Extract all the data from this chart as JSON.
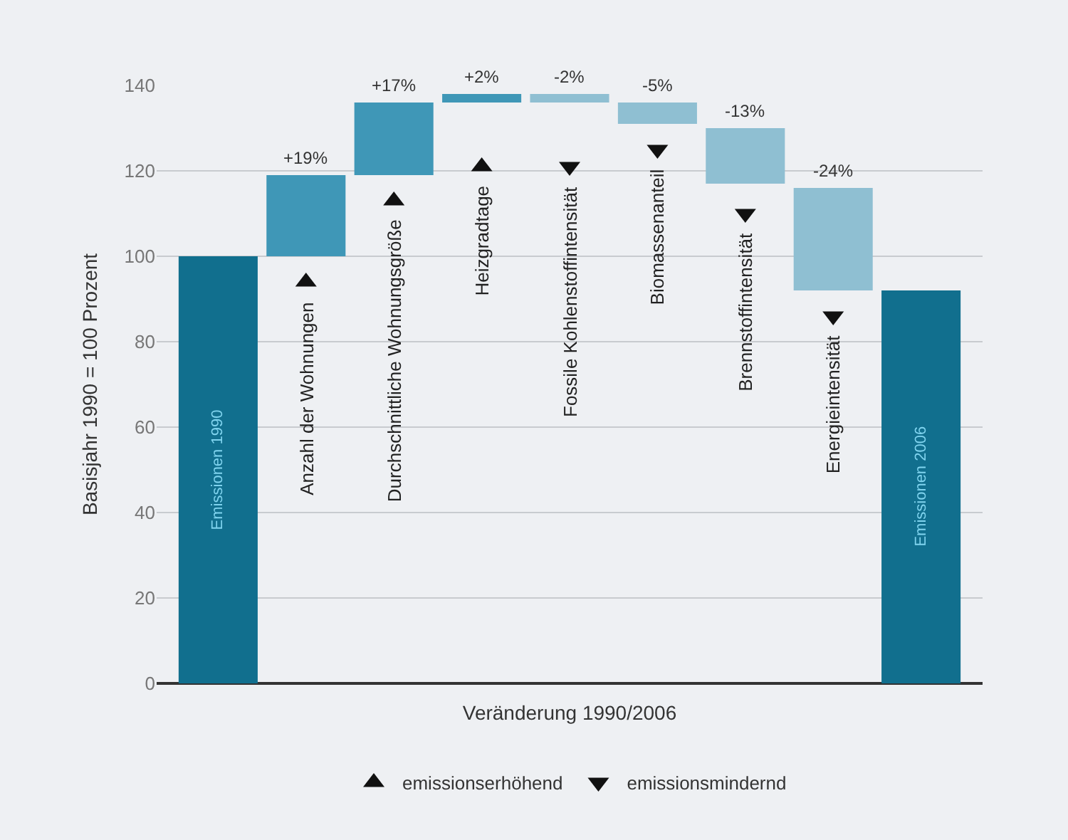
{
  "chart_data": {
    "type": "bar",
    "xlabel": "Veränderung 1990/2006",
    "ylabel": "Basisjahr 1990 = 100 Prozent",
    "categories": [
      "Emissionen 1990",
      "Anzahl der Wohnungen",
      "Durchschnittliche Wohnungsgröße",
      "Heizgradtage",
      "Fossile Kohlenstoffintensität",
      "Biomassenanteil",
      "Brennstoffintensität",
      "Energieintensität",
      "Emissionen 2006"
    ],
    "series": [
      {
        "values": [
          100,
          19,
          17,
          2,
          -2,
          -5,
          -13,
          -24,
          92
        ],
        "base": [
          0,
          100,
          119,
          136,
          138,
          136,
          130,
          116,
          0
        ],
        "colors": [
          "#116f8e",
          "#3f97b7",
          "#3f97b7",
          "#3f97b7",
          "#8fbfd2",
          "#8fbfd2",
          "#8fbfd2",
          "#8fbfd2",
          "#116f8e"
        ],
        "value_labels": [
          null,
          "+19%",
          "+17%",
          "+2%",
          "-2%",
          "-5%",
          "-13%",
          "-24%",
          null
        ]
      },
      {
        "type": "scatter",
        "name": "emissionserhöhend",
        "marker": "triangle-up",
        "color": "#111111",
        "x": [
          "Anzahl der Wohnungen",
          "Durchschnittliche Wohnungsgröße",
          "Heizgradtage"
        ],
        "values": [
          94,
          113,
          121
        ]
      },
      {
        "type": "scatter",
        "name": "emissionsmindernd",
        "marker": "triangle-down",
        "color": "#111111",
        "x": [
          "Fossile Kohlenstoffintensität",
          "Biomassenanteil",
          "Brennstoffintensität",
          "Energieintensität"
        ],
        "values": [
          121,
          125,
          110,
          86
        ]
      }
    ],
    "ylim": [
      0,
      140
    ],
    "yticks": [
      0,
      20,
      40,
      60,
      80,
      100,
      120,
      140
    ],
    "grid": "y",
    "legend": "bottom",
    "tick_labels": "y"
  }
}
